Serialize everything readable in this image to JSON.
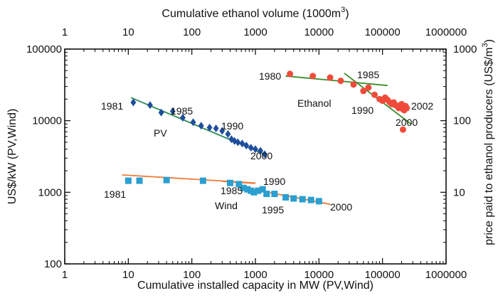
{
  "chart_data": {
    "type": "scatter",
    "title": "",
    "x_bottom": {
      "label": "Cumulative installed capacity in MW (PV,Wind)",
      "scale": "log",
      "range": [
        1,
        1000000
      ],
      "ticks": [
        1,
        10,
        100,
        1000,
        10000,
        100000,
        1000000
      ],
      "tick_labels": [
        "1",
        "10",
        "100",
        "1000",
        "10000",
        "100000",
        "1000000"
      ]
    },
    "x_top": {
      "label_main": "Cumulative ethanol volume (1000m",
      "label_sup": "3",
      "label_end": ")",
      "scale": "log",
      "range": [
        1,
        1000000
      ],
      "ticks": [
        1,
        10,
        100,
        1000,
        10000,
        100000,
        1000000
      ],
      "tick_labels": [
        "1",
        "10",
        "100",
        "1000",
        "10000",
        "100000",
        "1000000"
      ]
    },
    "y_left": {
      "label": "US$/kW (PV,Wind)",
      "scale": "log",
      "range": [
        100,
        100000
      ],
      "ticks": [
        100,
        1000,
        10000,
        100000
      ],
      "tick_labels": [
        "100",
        "1000",
        "10000",
        "100000"
      ]
    },
    "y_right": {
      "label_main": "price paid to ethanol producers (US$/m",
      "label_sup": "3",
      "label_end": ")",
      "scale": "log",
      "range": [
        1,
        1000
      ],
      "ticks": [
        10,
        100,
        1000
      ],
      "tick_labels": [
        "10",
        "100",
        "1000"
      ]
    },
    "series": [
      {
        "name": "PV",
        "axis": "left",
        "marker": "diamond",
        "color": "#1f4e9c",
        "x": [
          12,
          22,
          33,
          50,
          72,
          105,
          140,
          190,
          240,
          300,
          370,
          420,
          470,
          530,
          620,
          720,
          850,
          1000,
          1200,
          1400
        ],
        "y": [
          18000,
          16500,
          13000,
          13500,
          11000,
          9500,
          8500,
          8000,
          7800,
          7200,
          6500,
          5500,
          5200,
          5000,
          4800,
          4500,
          4200,
          4000,
          3800,
          3400
        ],
        "trendline": {
          "x": [
            11,
            1500
          ],
          "y": [
            21000,
            3300
          ],
          "color": "#2e8b57"
        }
      },
      {
        "name": "Wind",
        "axis": "left",
        "marker": "square",
        "color": "#2a9fd0",
        "x": [
          10,
          15,
          40,
          150,
          400,
          550,
          650,
          750,
          850,
          950,
          1100,
          1300,
          1500,
          2000,
          3000,
          4000,
          5500,
          7500,
          10000
        ],
        "y": [
          1450,
          1450,
          1480,
          1450,
          1350,
          1300,
          1150,
          1100,
          1050,
          1000,
          1050,
          1100,
          950,
          950,
          850,
          820,
          800,
          780,
          750
        ],
        "trendlines": [
          {
            "x": [
              8,
              1000
            ],
            "y": [
              1750,
              1350
            ],
            "color": "#ee7a3a"
          },
          {
            "x": [
              300,
              1000
            ],
            "y": [
              1420,
              1330
            ],
            "color": "#ee7a3a"
          },
          {
            "x": [
              900,
              15000
            ],
            "y": [
              1100,
              680
            ],
            "color": "#ee7a3a"
          }
        ]
      },
      {
        "name": "Ethanol",
        "axis": "right",
        "marker": "circle",
        "color": "#f04b3a",
        "x": [
          3500,
          8000,
          15000,
          22000,
          35000,
          50000,
          60000,
          75000,
          90000,
          100000,
          110000,
          120000,
          130000,
          140000,
          150000,
          160000,
          170000,
          180000,
          190000,
          200000,
          210000,
          220000,
          230000,
          240000
        ],
        "y": [
          450,
          420,
          400,
          360,
          320,
          260,
          290,
          230,
          200,
          190,
          210,
          195,
          180,
          170,
          180,
          165,
          160,
          150,
          165,
          170,
          145,
          140,
          160,
          150
        ],
        "outlier": {
          "x": 210000,
          "y": 75
        },
        "trendlines": [
          {
            "x": [
              3000,
              120000
            ],
            "y": [
              420,
              310
            ],
            "color": "#3c8c2a"
          },
          {
            "x": [
              25000,
              280000
            ],
            "y": [
              460,
              90
            ],
            "color": "#3c8c2a"
          }
        ]
      }
    ],
    "annotations": [
      {
        "text": "1981",
        "series": "PV"
      },
      {
        "text": "1985",
        "series": "PV"
      },
      {
        "text": "1990",
        "series": "PV"
      },
      {
        "text": "2000",
        "series": "PV"
      },
      {
        "text": "PV",
        "series": "PV"
      },
      {
        "text": "1981",
        "series": "Wind"
      },
      {
        "text": "1985",
        "series": "Wind"
      },
      {
        "text": "1990",
        "series": "Wind"
      },
      {
        "text": "1995",
        "series": "Wind"
      },
      {
        "text": "2000",
        "series": "Wind"
      },
      {
        "text": "Wind",
        "series": "Wind"
      },
      {
        "text": "1980",
        "series": "Ethanol"
      },
      {
        "text": "1985",
        "series": "Ethanol"
      },
      {
        "text": "1990",
        "series": "Ethanol"
      },
      {
        "text": "2000",
        "series": "Ethanol"
      },
      {
        "text": "2002",
        "series": "Ethanol"
      },
      {
        "text": "Ethanol",
        "series": "Ethanol"
      }
    ],
    "grid": false,
    "legend": "none"
  }
}
